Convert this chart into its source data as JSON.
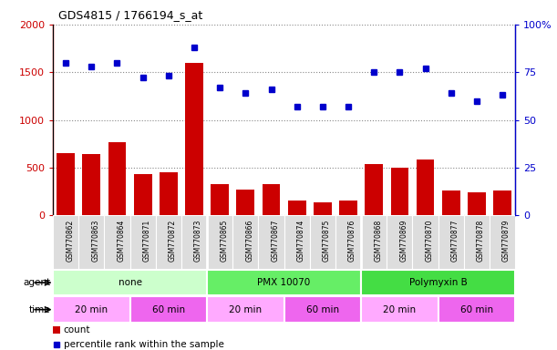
{
  "title": "GDS4815 / 1766194_s_at",
  "samples": [
    "GSM770862",
    "GSM770863",
    "GSM770864",
    "GSM770871",
    "GSM770872",
    "GSM770873",
    "GSM770865",
    "GSM770866",
    "GSM770867",
    "GSM770874",
    "GSM770875",
    "GSM770876",
    "GSM770868",
    "GSM770869",
    "GSM770870",
    "GSM770877",
    "GSM770878",
    "GSM770879"
  ],
  "counts": [
    650,
    640,
    770,
    430,
    450,
    1600,
    330,
    270,
    330,
    155,
    140,
    150,
    535,
    500,
    580,
    255,
    240,
    255
  ],
  "percentiles": [
    80,
    78,
    80,
    72,
    73,
    88,
    67,
    64,
    66,
    57,
    57,
    57,
    75,
    75,
    77,
    64,
    60,
    63
  ],
  "bar_color": "#CC0000",
  "dot_color": "#0000CC",
  "ylim_left": [
    0,
    2000
  ],
  "ylim_right": [
    0,
    100
  ],
  "yticks_left": [
    0,
    500,
    1000,
    1500,
    2000
  ],
  "ytick_labels_left": [
    "0",
    "500",
    "1000",
    "1500",
    "2000"
  ],
  "yticks_right": [
    0,
    25,
    50,
    75,
    100
  ],
  "ytick_labels_right": [
    "0",
    "25",
    "50",
    "75",
    "100%"
  ],
  "agent_groups": [
    {
      "label": "none",
      "start": 0,
      "end": 6,
      "color": "#ccffcc"
    },
    {
      "label": "PMX 10070",
      "start": 6,
      "end": 12,
      "color": "#66ee66"
    },
    {
      "label": "Polymyxin B",
      "start": 12,
      "end": 18,
      "color": "#44dd44"
    }
  ],
  "time_groups": [
    {
      "label": "20 min",
      "start": 0,
      "end": 3,
      "color": "#ffaaff"
    },
    {
      "label": "60 min",
      "start": 3,
      "end": 6,
      "color": "#ee66ee"
    },
    {
      "label": "20 min",
      "start": 6,
      "end": 9,
      "color": "#ffaaff"
    },
    {
      "label": "60 min",
      "start": 9,
      "end": 12,
      "color": "#ee66ee"
    },
    {
      "label": "20 min",
      "start": 12,
      "end": 15,
      "color": "#ffaaff"
    },
    {
      "label": "60 min",
      "start": 15,
      "end": 18,
      "color": "#ee66ee"
    }
  ],
  "legend_count_color": "#CC0000",
  "legend_dot_color": "#0000CC",
  "bg_color": "#ffffff",
  "grid_color": "#888888",
  "agent_label": "agent",
  "time_label": "time",
  "legend_count": "count",
  "legend_percentile": "percentile rank within the sample",
  "tick_area_color": "#dddddd"
}
